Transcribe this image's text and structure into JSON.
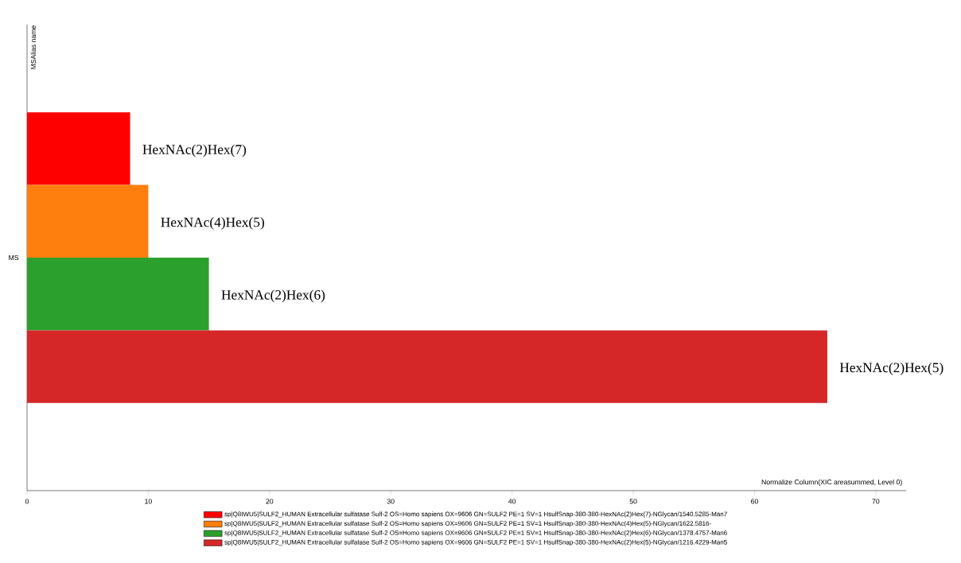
{
  "chart_data": {
    "type": "bar",
    "orientation": "horizontal",
    "xlabel": "Normalize Column(XIC areasummed, Level 0)",
    "ylabel": "MSAlias name",
    "categories": [
      "MS"
    ],
    "series": [
      {
        "name": "sp|Q8IWU5|SULF2_HUMAN Extracellular sulfatase Sulf-2 OS=Homo sapiens OX=9606 GN=SULF2 PE=1 SV=1 HsulfSnap-380-380-HexNAc(2)Hex(7)-NGlycan/1540.5285-Man7",
        "color": "#ff0000",
        "values": [
          8.5
        ]
      },
      {
        "name": "sp|Q8IWU5|SULF2_HUMAN Extracellular sulfatase Sulf-2 OS=Homo sapiens OX=9606 GN=SULF2 PE=1 SV=1 HsulfSnap-380-380-HexNAc(4)Hex(5)-NGlycan/1622.5816-",
        "color": "#ff7f0e",
        "values": [
          10.0
        ]
      },
      {
        "name": "sp|Q8IWU5|SULF2_HUMAN Extracellular sulfatase Sulf-2 OS=Homo sapiens OX=9606 GN=SULF2 PE=1 SV=1 HsulfSnap-380-380-HexNAc(2)Hex(6)-NGlycan/1378.4757-Man6",
        "color": "#2ca02c",
        "values": [
          15.0
        ]
      },
      {
        "name": "sp|Q8IWU5|SULF2_HUMAN Extracellular sulfatase Sulf-2 OS=Homo sapiens OX=9606 GN=SULF2 PE=1 SV=1 HsulfSnap-380-380-HexNAc(2)Hex(5)-NGlycan/1216.4229-Man5",
        "color": "#d62728",
        "values": [
          66.0
        ]
      }
    ],
    "annotations": [
      "HexNAc(2)Hex(7)",
      "HexNAc(4)Hex(5)",
      "HexNAc(2)Hex(6)",
      "HexNAc(2)Hex(5)"
    ],
    "xlim": [
      0,
      72.5
    ],
    "xticks": [
      0,
      10,
      20,
      30,
      40,
      50,
      60,
      70
    ],
    "grid": false,
    "legend": "bottom"
  }
}
